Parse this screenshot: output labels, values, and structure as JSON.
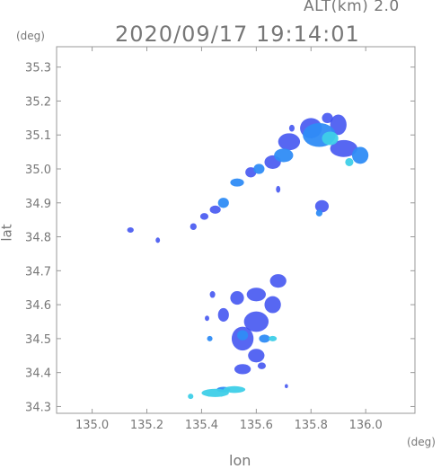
{
  "header": {
    "alt_label": "ALT(km)  2.0",
    "datetime": "2020/09/17 19:14:01"
  },
  "chart_data": {
    "type": "scatter",
    "subtype": "radar-echo-map",
    "xlabel": "lon",
    "ylabel": "lat",
    "x_unit": "(deg)",
    "y_unit": "(deg)",
    "xlim": [
      134.87,
      136.18
    ],
    "ylim": [
      34.28,
      35.36
    ],
    "xticks": [
      135.0,
      135.2,
      135.4,
      135.6,
      135.8,
      136.0
    ],
    "xtick_labels": [
      "135.0",
      "135.2",
      "135.4",
      "135.6",
      "135.8",
      "136.0"
    ],
    "yticks": [
      34.3,
      34.4,
      34.5,
      34.6,
      34.7,
      34.8,
      34.9,
      35.0,
      35.1,
      35.2,
      35.3
    ],
    "ytick_labels": [
      "34.3",
      "34.4",
      "34.5",
      "34.6",
      "34.7",
      "34.8",
      "34.9",
      "35.0",
      "35.1",
      "35.2",
      "35.3"
    ],
    "grid": false,
    "colors": {
      "weak": "#3a4cf0",
      "moderate": "#2f8cf5",
      "strong": "#3ecfe8",
      "axis": "#999999"
    },
    "echoes": [
      {
        "lon": 135.83,
        "lat": 35.1,
        "rx": 0.06,
        "ry": 0.035,
        "level": "moderate"
      },
      {
        "lon": 135.87,
        "lat": 35.09,
        "rx": 0.03,
        "ry": 0.02,
        "level": "strong"
      },
      {
        "lon": 135.8,
        "lat": 35.12,
        "rx": 0.04,
        "ry": 0.03,
        "level": "weak"
      },
      {
        "lon": 135.9,
        "lat": 35.13,
        "rx": 0.03,
        "ry": 0.03,
        "level": "weak"
      },
      {
        "lon": 135.92,
        "lat": 35.06,
        "rx": 0.05,
        "ry": 0.025,
        "level": "weak"
      },
      {
        "lon": 135.98,
        "lat": 35.04,
        "rx": 0.03,
        "ry": 0.025,
        "level": "moderate"
      },
      {
        "lon": 135.94,
        "lat": 35.02,
        "rx": 0.015,
        "ry": 0.012,
        "level": "strong"
      },
      {
        "lon": 135.86,
        "lat": 35.15,
        "rx": 0.02,
        "ry": 0.015,
        "level": "weak"
      },
      {
        "lon": 135.72,
        "lat": 35.08,
        "rx": 0.04,
        "ry": 0.025,
        "level": "weak"
      },
      {
        "lon": 135.7,
        "lat": 35.04,
        "rx": 0.035,
        "ry": 0.02,
        "level": "moderate"
      },
      {
        "lon": 135.66,
        "lat": 35.02,
        "rx": 0.03,
        "ry": 0.02,
        "level": "weak"
      },
      {
        "lon": 135.61,
        "lat": 35.0,
        "rx": 0.02,
        "ry": 0.015,
        "level": "moderate"
      },
      {
        "lon": 135.58,
        "lat": 34.99,
        "rx": 0.02,
        "ry": 0.015,
        "level": "weak"
      },
      {
        "lon": 135.53,
        "lat": 34.96,
        "rx": 0.025,
        "ry": 0.012,
        "level": "moderate"
      },
      {
        "lon": 135.48,
        "lat": 34.9,
        "rx": 0.02,
        "ry": 0.015,
        "level": "moderate"
      },
      {
        "lon": 135.45,
        "lat": 34.88,
        "rx": 0.02,
        "ry": 0.012,
        "level": "weak"
      },
      {
        "lon": 135.41,
        "lat": 34.86,
        "rx": 0.015,
        "ry": 0.01,
        "level": "weak"
      },
      {
        "lon": 135.37,
        "lat": 34.83,
        "rx": 0.012,
        "ry": 0.01,
        "level": "weak"
      },
      {
        "lon": 135.73,
        "lat": 35.12,
        "rx": 0.01,
        "ry": 0.01,
        "level": "weak"
      },
      {
        "lon": 135.68,
        "lat": 34.94,
        "rx": 0.008,
        "ry": 0.01,
        "level": "weak"
      },
      {
        "lon": 135.84,
        "lat": 34.89,
        "rx": 0.025,
        "ry": 0.018,
        "level": "weak"
      },
      {
        "lon": 135.83,
        "lat": 34.87,
        "rx": 0.012,
        "ry": 0.01,
        "level": "moderate"
      },
      {
        "lon": 135.14,
        "lat": 34.82,
        "rx": 0.012,
        "ry": 0.008,
        "level": "weak"
      },
      {
        "lon": 135.24,
        "lat": 34.79,
        "rx": 0.008,
        "ry": 0.008,
        "level": "weak"
      },
      {
        "lon": 135.68,
        "lat": 34.67,
        "rx": 0.03,
        "ry": 0.02,
        "level": "weak"
      },
      {
        "lon": 135.6,
        "lat": 34.63,
        "rx": 0.035,
        "ry": 0.02,
        "level": "weak"
      },
      {
        "lon": 135.66,
        "lat": 34.6,
        "rx": 0.03,
        "ry": 0.025,
        "level": "weak"
      },
      {
        "lon": 135.53,
        "lat": 34.62,
        "rx": 0.025,
        "ry": 0.02,
        "level": "weak"
      },
      {
        "lon": 135.48,
        "lat": 34.57,
        "rx": 0.02,
        "ry": 0.02,
        "level": "weak"
      },
      {
        "lon": 135.6,
        "lat": 34.55,
        "rx": 0.045,
        "ry": 0.03,
        "level": "weak"
      },
      {
        "lon": 135.55,
        "lat": 34.5,
        "rx": 0.04,
        "ry": 0.035,
        "level": "weak"
      },
      {
        "lon": 135.55,
        "lat": 34.51,
        "rx": 0.02,
        "ry": 0.015,
        "level": "moderate"
      },
      {
        "lon": 135.63,
        "lat": 34.5,
        "rx": 0.02,
        "ry": 0.012,
        "level": "moderate"
      },
      {
        "lon": 135.66,
        "lat": 34.5,
        "rx": 0.015,
        "ry": 0.008,
        "level": "strong"
      },
      {
        "lon": 135.43,
        "lat": 34.5,
        "rx": 0.01,
        "ry": 0.008,
        "level": "moderate"
      },
      {
        "lon": 135.6,
        "lat": 34.45,
        "rx": 0.03,
        "ry": 0.02,
        "level": "weak"
      },
      {
        "lon": 135.55,
        "lat": 34.41,
        "rx": 0.03,
        "ry": 0.015,
        "level": "weak"
      },
      {
        "lon": 135.62,
        "lat": 34.42,
        "rx": 0.015,
        "ry": 0.01,
        "level": "weak"
      },
      {
        "lon": 135.44,
        "lat": 34.63,
        "rx": 0.01,
        "ry": 0.01,
        "level": "weak"
      },
      {
        "lon": 135.42,
        "lat": 34.56,
        "rx": 0.008,
        "ry": 0.008,
        "level": "weak"
      },
      {
        "lon": 135.45,
        "lat": 34.34,
        "rx": 0.05,
        "ry": 0.012,
        "level": "strong"
      },
      {
        "lon": 135.52,
        "lat": 34.35,
        "rx": 0.04,
        "ry": 0.01,
        "level": "strong"
      },
      {
        "lon": 135.48,
        "lat": 34.35,
        "rx": 0.025,
        "ry": 0.008,
        "level": "moderate"
      },
      {
        "lon": 135.36,
        "lat": 34.33,
        "rx": 0.01,
        "ry": 0.008,
        "level": "strong"
      },
      {
        "lon": 135.71,
        "lat": 34.36,
        "rx": 0.006,
        "ry": 0.006,
        "level": "weak"
      }
    ]
  }
}
